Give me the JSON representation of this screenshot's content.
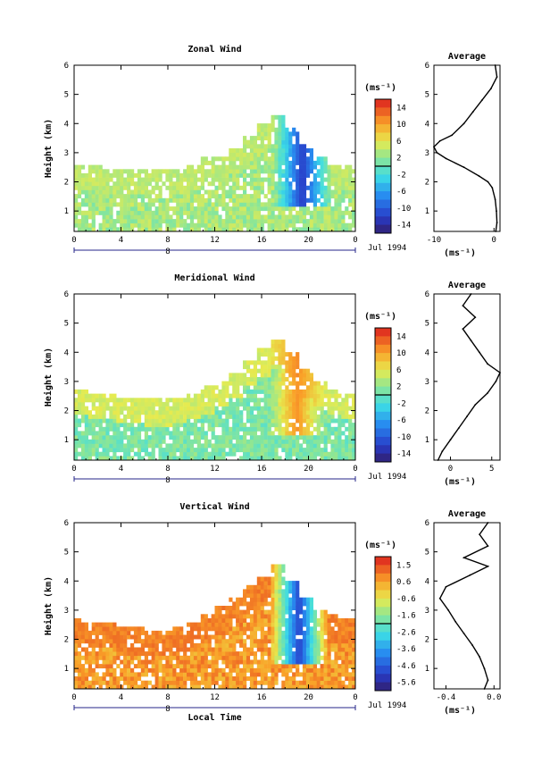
{
  "chart_data": [
    {
      "type": "heatmap",
      "title": "Zonal Wind",
      "ylabel": "Height (km)",
      "xlabel": "",
      "x_ticks": [
        "0",
        "4",
        "8",
        "12",
        "16",
        "20",
        "0"
      ],
      "y_ticks": [
        "1",
        "2",
        "3",
        "4",
        "5",
        "6"
      ],
      "ylim": [
        0.3,
        6
      ],
      "xlim": [
        0,
        24
      ],
      "date_label": "Jul 1994",
      "day_label": "8",
      "colorbar": {
        "unit": "(ms⁻¹)",
        "ticks": [
          "14",
          "10",
          "6",
          "2",
          "-2",
          "-6",
          "-10",
          "-14"
        ],
        "range": [
          -16,
          16
        ]
      },
      "field": {
        "base_value": 3,
        "upper_base_value": 4,
        "boundary_height": [
          2.6,
          2.6,
          2.5,
          2.4,
          2.5,
          2.4,
          2.4,
          2.5,
          2.6,
          2.8,
          2.9,
          3.2,
          3.6,
          4.0,
          4.3,
          3.8,
          3.3,
          2.9,
          2.6,
          2.6
        ],
        "core": {
          "t_center": 19.5,
          "h_center": 3.4,
          "value": -14
        }
      },
      "average_profile": {
        "title": "Average",
        "xlabel": "(ms⁻¹)",
        "x_ticks": [
          "-10",
          "0"
        ],
        "xlim": [
          -10,
          1
        ],
        "heights": [
          0.3,
          0.6,
          1.0,
          1.4,
          1.8,
          2.0,
          2.2,
          2.5,
          2.8,
          3.0,
          3.2,
          3.4,
          3.6,
          4.0,
          4.4,
          4.8,
          5.2,
          5.6,
          6.0
        ],
        "values": [
          0.3,
          0.5,
          0.4,
          0.2,
          -0.3,
          -1.0,
          -2.5,
          -5.0,
          -8.0,
          -9.5,
          -10.0,
          -9.0,
          -7.0,
          -5.0,
          -3.5,
          -2.0,
          -0.5,
          0.5,
          0.2
        ]
      }
    },
    {
      "type": "heatmap",
      "title": "Meridional Wind",
      "ylabel": "Height (km)",
      "xlabel": "",
      "x_ticks": [
        "0",
        "4",
        "8",
        "12",
        "16",
        "20",
        "0"
      ],
      "y_ticks": [
        "1",
        "2",
        "3",
        "4",
        "5",
        "6"
      ],
      "ylim": [
        0.3,
        6
      ],
      "xlim": [
        0,
        24
      ],
      "date_label": "Jul 1994",
      "day_label": "8",
      "colorbar": {
        "unit": "(ms⁻¹)",
        "ticks": [
          "14",
          "10",
          "6",
          "2",
          "-2",
          "-6",
          "-10",
          "-14"
        ],
        "range": [
          -16,
          16
        ]
      },
      "field": {
        "base_value": 1,
        "upper_base_value": 5,
        "boundary_height": [
          2.7,
          2.6,
          2.6,
          2.5,
          2.5,
          2.4,
          2.4,
          2.5,
          2.6,
          2.8,
          3.0,
          3.3,
          3.7,
          4.1,
          4.5,
          4.0,
          3.4,
          3.0,
          2.7,
          2.6
        ],
        "core": {
          "t_center": 19.0,
          "h_center": 4.0,
          "value": 12
        }
      },
      "average_profile": {
        "title": "Average",
        "xlabel": "(ms⁻¹)",
        "x_ticks": [
          "0",
          "5"
        ],
        "xlim": [
          -2,
          6
        ],
        "heights": [
          0.3,
          0.6,
          1.0,
          1.4,
          1.8,
          2.2,
          2.6,
          3.0,
          3.3,
          3.6,
          4.0,
          4.4,
          4.8,
          5.2,
          5.6,
          6.0
        ],
        "values": [
          -1.5,
          -1.0,
          0.0,
          1.0,
          2.0,
          3.0,
          4.5,
          5.5,
          6.0,
          4.5,
          3.5,
          2.5,
          1.5,
          3.0,
          1.5,
          2.5
        ]
      }
    },
    {
      "type": "heatmap",
      "title": "Vertical Wind",
      "ylabel": "Height (km)",
      "xlabel": "Local Time",
      "x_ticks": [
        "0",
        "4",
        "8",
        "12",
        "16",
        "20",
        "0"
      ],
      "y_ticks": [
        "1",
        "2",
        "3",
        "4",
        "5",
        "6"
      ],
      "ylim": [
        0.3,
        6
      ],
      "xlim": [
        0,
        24
      ],
      "date_label": "Jul 1994",
      "day_label": "8",
      "colorbar": {
        "unit": "(ms⁻¹)",
        "ticks": [
          "1.5",
          "0.6",
          "-0.6",
          "-1.6",
          "-2.6",
          "-3.6",
          "-4.6",
          "-5.6"
        ],
        "range": [
          -6,
          2
        ]
      },
      "field": {
        "base_value": 0.6,
        "upper_base_value": 0.9,
        "boundary_height": [
          2.7,
          2.6,
          2.6,
          2.5,
          2.4,
          2.3,
          2.3,
          2.4,
          2.6,
          2.8,
          3.1,
          3.4,
          3.8,
          4.2,
          4.6,
          4.0,
          3.4,
          3.0,
          2.8,
          2.7
        ],
        "core": {
          "t_center": 19.2,
          "h_center": 2.0,
          "value": -5.6
        }
      },
      "average_profile": {
        "title": "Average",
        "xlabel": "(ms⁻¹)",
        "x_ticks": [
          "-0.4",
          "0.0"
        ],
        "xlim": [
          -0.5,
          0.05
        ],
        "heights": [
          0.3,
          0.6,
          1.0,
          1.4,
          1.8,
          2.2,
          2.6,
          3.0,
          3.4,
          3.8,
          4.2,
          4.5,
          4.8,
          5.2,
          5.6,
          6.0
        ],
        "values": [
          -0.08,
          -0.05,
          -0.08,
          -0.12,
          -0.18,
          -0.25,
          -0.32,
          -0.38,
          -0.45,
          -0.4,
          -0.2,
          -0.05,
          -0.25,
          -0.05,
          -0.12,
          -0.05
        ]
      }
    }
  ]
}
